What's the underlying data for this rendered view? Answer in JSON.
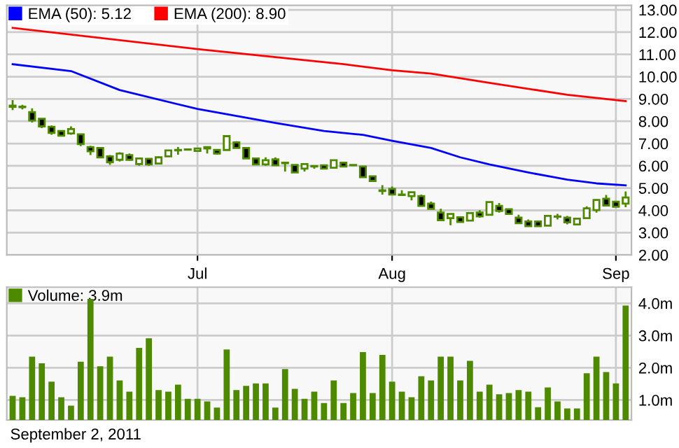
{
  "chart_data": [
    {
      "type": "candlestick",
      "categories": [
        null,
        null,
        null,
        null,
        null,
        null,
        null,
        null,
        null,
        null,
        null,
        null,
        null,
        null,
        null,
        null,
        null,
        null,
        null,
        "Jul",
        null,
        null,
        null,
        null,
        null,
        null,
        null,
        null,
        null,
        null,
        null,
        null,
        null,
        null,
        null,
        null,
        null,
        null,
        null,
        "Aug",
        null,
        null,
        null,
        null,
        null,
        null,
        null,
        null,
        null,
        null,
        null,
        null,
        null,
        null,
        null,
        null,
        null,
        null,
        null,
        null,
        null,
        null,
        "Sep",
        null
      ],
      "color": "#4e8a00",
      "ohlc": [
        [
          8.7,
          8.95,
          8.5,
          8.65
        ],
        [
          8.63,
          8.74,
          8.53,
          8.65
        ],
        [
          8.41,
          8.58,
          7.94,
          8.03
        ],
        [
          8.11,
          8.13,
          7.69,
          7.77
        ],
        [
          7.75,
          7.81,
          7.39,
          7.48
        ],
        [
          7.56,
          7.58,
          7.33,
          7.35
        ],
        [
          7.45,
          7.77,
          7.39,
          7.65
        ],
        [
          7.41,
          7.43,
          6.88,
          6.97
        ],
        [
          6.84,
          6.9,
          6.48,
          6.65
        ],
        [
          6.8,
          6.82,
          6.36,
          6.38
        ],
        [
          6.42,
          6.48,
          6.04,
          6.16
        ],
        [
          6.27,
          6.61,
          6.19,
          6.55
        ],
        [
          6.48,
          6.55,
          6.23,
          6.27
        ],
        [
          6.08,
          6.35,
          6.0,
          6.33
        ],
        [
          6.31,
          6.33,
          6.0,
          6.06
        ],
        [
          6.1,
          6.42,
          6.08,
          6.38
        ],
        [
          6.42,
          6.72,
          6.4,
          6.69
        ],
        [
          6.69,
          6.84,
          6.5,
          6.71
        ],
        [
          6.72,
          6.78,
          6.7,
          6.74
        ],
        [
          6.67,
          6.8,
          6.65,
          6.78
        ],
        [
          6.78,
          6.86,
          6.55,
          6.84
        ],
        [
          6.71,
          6.72,
          6.5,
          6.55
        ],
        [
          6.71,
          7.35,
          6.69,
          7.33
        ],
        [
          7.05,
          7.1,
          6.78,
          6.8
        ],
        [
          6.8,
          6.82,
          6.31,
          6.33
        ],
        [
          6.33,
          6.35,
          6.04,
          6.06
        ],
        [
          6.06,
          6.38,
          6.0,
          6.25
        ],
        [
          6.29,
          6.38,
          6.0,
          6.02
        ],
        [
          6.14,
          6.14,
          5.74,
          6.12
        ],
        [
          6.04,
          6.06,
          5.68,
          5.7
        ],
        [
          5.87,
          6.1,
          5.74,
          6.08
        ],
        [
          5.99,
          6.02,
          5.87,
          5.97
        ],
        [
          6.02,
          6.04,
          5.85,
          5.87
        ],
        [
          5.91,
          6.27,
          5.89,
          6.25
        ],
        [
          6.14,
          6.16,
          5.95,
          5.97
        ],
        [
          6.04,
          6.06,
          5.99,
          6.02
        ],
        [
          5.97,
          6.0,
          5.47,
          5.49
        ],
        [
          5.53,
          5.55,
          5.3,
          5.32
        ],
        [
          4.9,
          5.13,
          4.71,
          4.87
        ],
        [
          4.96,
          5.07,
          4.69,
          4.71
        ],
        [
          4.71,
          4.9,
          4.67,
          4.69
        ],
        [
          4.64,
          4.83,
          4.45,
          4.81
        ],
        [
          4.64,
          4.71,
          4.18,
          4.2
        ],
        [
          4.3,
          4.39,
          4.05,
          4.07
        ],
        [
          3.9,
          4.07,
          3.54,
          3.56
        ],
        [
          3.65,
          3.86,
          3.33,
          3.84
        ],
        [
          3.69,
          3.73,
          3.46,
          3.48
        ],
        [
          3.54,
          3.9,
          3.52,
          3.88
        ],
        [
          3.9,
          4.01,
          3.67,
          3.73
        ],
        [
          3.8,
          4.39,
          3.78,
          4.37
        ],
        [
          4.2,
          4.33,
          3.9,
          3.97
        ],
        [
          4.05,
          4.07,
          3.82,
          3.84
        ],
        [
          3.67,
          3.8,
          3.4,
          3.42
        ],
        [
          3.5,
          3.59,
          3.27,
          3.29
        ],
        [
          3.5,
          3.52,
          3.27,
          3.29
        ],
        [
          3.31,
          3.77,
          3.29,
          3.75
        ],
        [
          3.73,
          3.84,
          3.59,
          3.71
        ],
        [
          3.67,
          3.75,
          3.37,
          3.46
        ],
        [
          3.37,
          3.65,
          3.35,
          3.63
        ],
        [
          3.65,
          4.18,
          3.63,
          4.09
        ],
        [
          4.01,
          4.5,
          3.9,
          4.47
        ],
        [
          4.52,
          4.69,
          4.2,
          4.22
        ],
        [
          4.39,
          4.41,
          4.14,
          4.16
        ],
        [
          4.3,
          4.85,
          4.14,
          4.58
        ]
      ],
      "series": [
        {
          "name": "EMA (50): 5.12",
          "type": "line",
          "color": "#0000ff",
          "values": [
            10.56,
            null,
            null,
            null,
            null,
            null,
            10.25,
            null,
            null,
            null,
            null,
            9.4,
            null,
            null,
            null,
            null,
            null,
            null,
            null,
            8.55,
            null,
            null,
            null,
            null,
            null,
            null,
            null,
            7.92,
            null,
            null,
            null,
            null,
            7.56,
            null,
            null,
            null,
            7.39,
            null,
            null,
            7.12,
            null,
            null,
            null,
            6.8,
            null,
            null,
            6.38,
            null,
            null,
            6.06,
            null,
            null,
            null,
            5.7,
            null,
            null,
            null,
            5.38,
            null,
            null,
            5.21,
            null,
            null,
            5.12
          ]
        },
        {
          "name": "EMA (200): 8.90",
          "type": "line",
          "color": "#ff0000",
          "values": [
            12.19,
            null,
            null,
            null,
            null,
            null,
            null,
            null,
            null,
            null,
            null,
            null,
            null,
            null,
            null,
            null,
            null,
            null,
            null,
            11.24,
            null,
            null,
            null,
            null,
            null,
            null,
            null,
            null,
            null,
            null,
            null,
            null,
            null,
            null,
            10.56,
            null,
            null,
            null,
            null,
            10.29,
            null,
            null,
            null,
            10.14,
            null,
            null,
            null,
            null,
            null,
            9.72,
            null,
            null,
            null,
            null,
            null,
            null,
            null,
            9.19,
            null,
            null,
            null,
            null,
            null,
            8.9
          ]
        }
      ],
      "ylim": [
        2,
        13.2
      ],
      "yticks": [
        {
          "value": 2,
          "label": "2.00"
        },
        {
          "value": 3,
          "label": "3.00"
        },
        {
          "value": 4,
          "label": "4.00"
        },
        {
          "value": 5,
          "label": "5.00"
        },
        {
          "value": 6,
          "label": "6.00"
        },
        {
          "value": 7,
          "label": "7.00"
        },
        {
          "value": 8,
          "label": "8.00"
        },
        {
          "value": 9,
          "label": "9.00"
        },
        {
          "value": 10,
          "label": "10.00"
        },
        {
          "value": 11,
          "label": "11.00"
        },
        {
          "value": 12,
          "label": "12.00"
        },
        {
          "value": 13,
          "label": "13.00"
        }
      ],
      "grid": true,
      "legend": "top left"
    },
    {
      "type": "bar",
      "categories": [
        null,
        null,
        null,
        null,
        null,
        null,
        null,
        null,
        null,
        null,
        null,
        null,
        null,
        null,
        null,
        null,
        null,
        null,
        null,
        null,
        null,
        null,
        null,
        null,
        null,
        null,
        null,
        null,
        null,
        null,
        null,
        null,
        null,
        null,
        null,
        null,
        null,
        null,
        null,
        null,
        null,
        null,
        null,
        null,
        null,
        null,
        null,
        null,
        null,
        null,
        null,
        null,
        null,
        null,
        null,
        null,
        null,
        null,
        null,
        null,
        null,
        null,
        null,
        null
      ],
      "series": [
        {
          "name": "Volume: 3.9m",
          "color": "#4e8a00",
          "values": [
            1.1,
            1.06,
            2.32,
            2.11,
            1.54,
            1.06,
            0.8,
            2.16,
            4.11,
            2.02,
            2.32,
            1.58,
            1.23,
            2.59,
            2.89,
            1.28,
            1.23,
            1.45,
            1.01,
            1.01,
            0.93,
            0.74,
            2.54,
            1.28,
            1.41,
            1.49,
            1.49,
            0.74,
            1.93,
            1.32,
            1.01,
            1.23,
            0.88,
            1.58,
            0.88,
            1.19,
            2.46,
            1.19,
            2.37,
            1.54,
            1.23,
            1.06,
            1.71,
            1.58,
            2.32,
            2.32,
            1.58,
            2.19,
            1.23,
            1.45,
            1.15,
            1.19,
            1.28,
            1.23,
            0.75,
            1.36,
            0.93,
            0.71,
            0.71,
            1.8,
            2.32,
            1.84,
            1.49,
            3.9
          ]
        }
      ],
      "ylim": [
        0.38,
        4.5
      ],
      "yticks": [
        {
          "value": 1,
          "label": "1.0m"
        },
        {
          "value": 2,
          "label": "2.0m"
        },
        {
          "value": 3,
          "label": "3.0m"
        },
        {
          "value": 4,
          "label": "4.0m"
        }
      ],
      "grid": true,
      "legend": "top left",
      "tick_labels": "y",
      "annotations": [
        "September 2, 2011"
      ]
    }
  ]
}
